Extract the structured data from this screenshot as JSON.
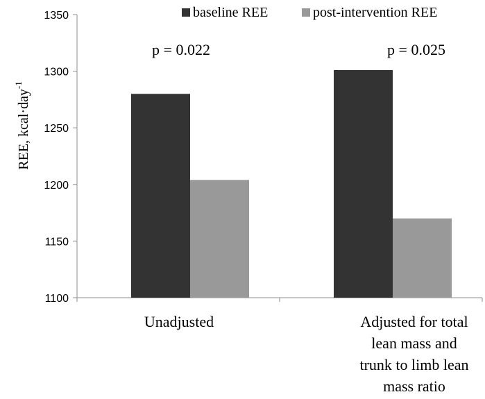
{
  "chart_data": {
    "type": "bar",
    "categories": [
      [
        "Unadjusted"
      ],
      [
        "Adjusted for total",
        "lean mass and",
        "trunk to limb lean",
        "mass ratio"
      ]
    ],
    "series": [
      {
        "name": "baseline REE",
        "values": [
          1280,
          1301
        ],
        "color": "#333333"
      },
      {
        "name": "post-intervention REE",
        "values": [
          1204,
          1170
        ],
        "color": "#999999"
      }
    ],
    "annotations": [
      "p = 0.022",
      "p = 0.025"
    ],
    "ylabel": "REE, kcal·day",
    "ylabel_superscript": "-1",
    "ylim": [
      1100,
      1350
    ],
    "yticks": [
      1100,
      1150,
      1200,
      1250,
      1300,
      1350
    ],
    "grid": false,
    "legend_position": "top-right"
  }
}
